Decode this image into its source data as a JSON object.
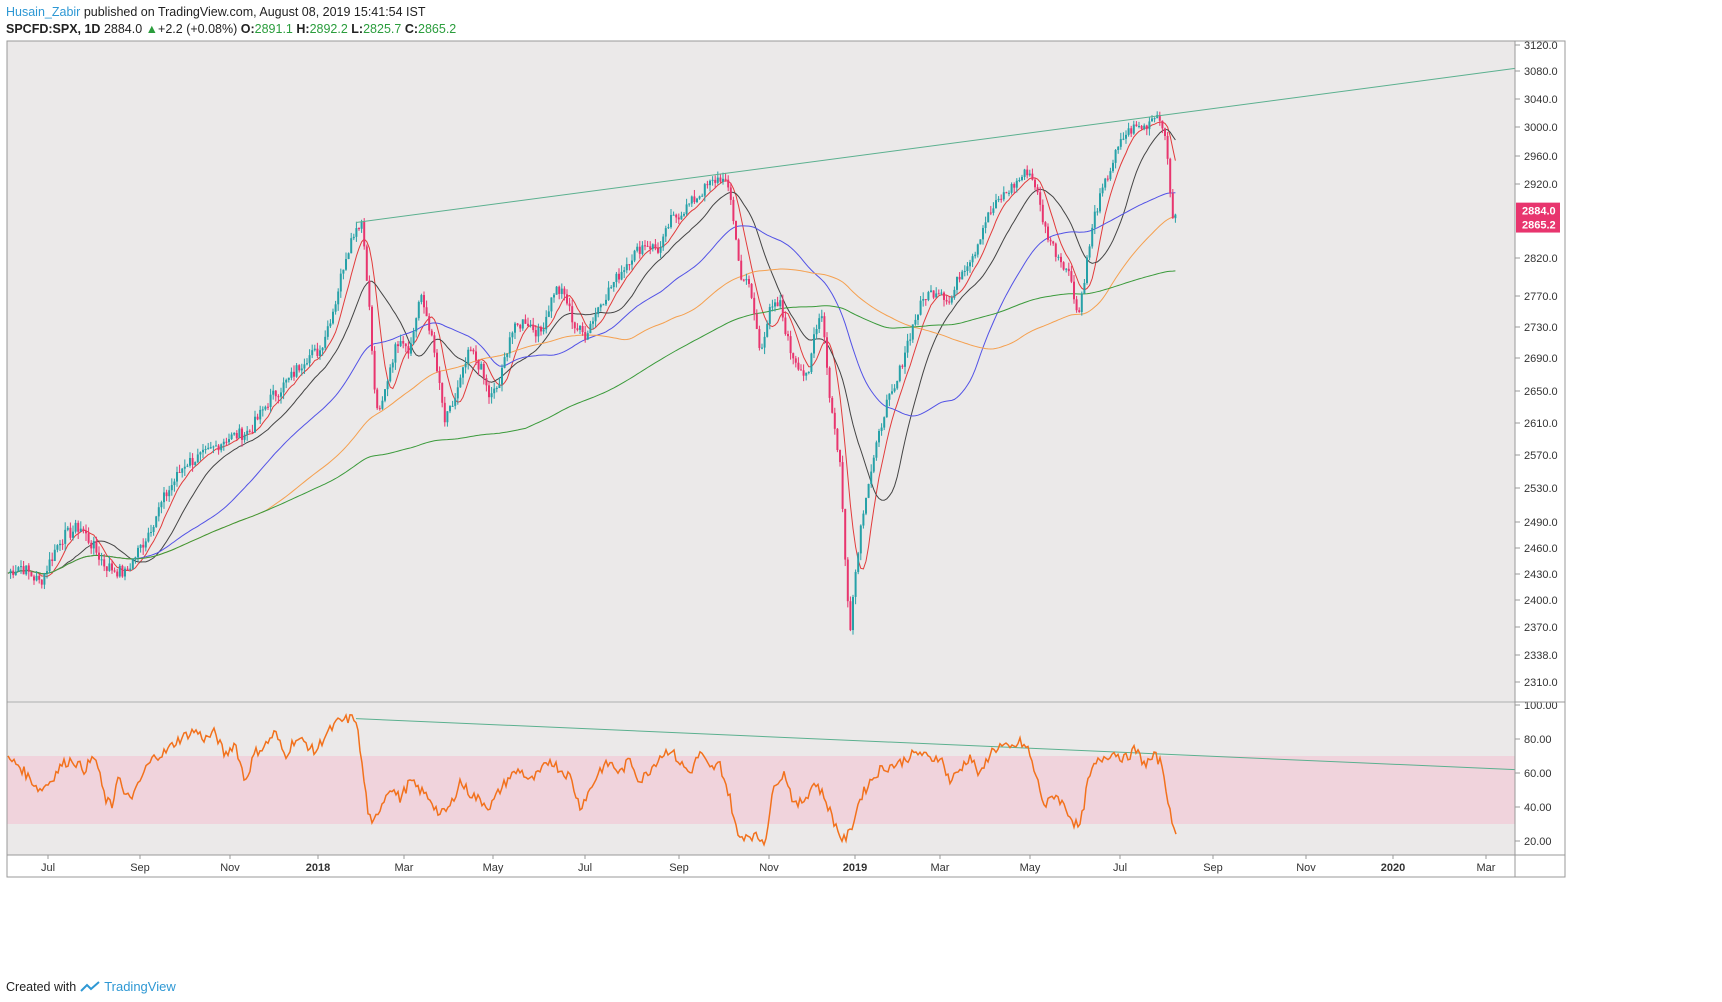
{
  "header": {
    "username": "Husain_Zabir",
    "published_text": " published on TradingView.com, August 08, 2019 15:41:54 IST",
    "symbol": "SPCFD:SPX, 1D",
    "last": "2884.0",
    "change": "+2.2 (+0.08%)",
    "open_label": "O:",
    "open": "2891.1",
    "high_label": "H:",
    "high": "2892.2",
    "low_label": "L:",
    "low": "2825.7",
    "close_label": "C:",
    "close": "2865.2"
  },
  "footer": {
    "created_with": "Created with",
    "brand": "TradingView"
  },
  "colors": {
    "bull": "#26a1a8",
    "bear": "#e8356e",
    "ma_fast": "#e23b3b",
    "ma_black": "#444444",
    "ma_blue": "#5252e6",
    "ma_orange": "#f5a04f",
    "ma_green": "#3a9a3a",
    "trend": "#5bb08f",
    "rsi": "#f2711c",
    "rsi_band": "#f0d3dc",
    "panel_bg": "#ebe8e8"
  },
  "chart_data": {
    "type": "line",
    "title": "SPCFD:SPX, 1D",
    "price_axis": {
      "ticks": [
        "3120.0",
        "3080.0",
        "3040.0",
        "3000.0",
        "2960.0",
        "2920.0",
        "2820.0",
        "2770.0",
        "2730.0",
        "2690.0",
        "2650.0",
        "2610.0",
        "2570.0",
        "2530.0",
        "2490.0",
        "2460.0",
        "2430.0",
        "2400.0",
        "2370.0",
        "2338.0",
        "2310.0"
      ],
      "ylim": [
        2290,
        3125
      ]
    },
    "price_labels": {
      "last": "2884.0",
      "close": "2865.2"
    },
    "rsi_axis": {
      "ticks": [
        "100.00",
        "80.00",
        "60.00",
        "40.00",
        "20.00"
      ],
      "ylim": [
        10,
        100
      ],
      "band": [
        30,
        70
      ]
    },
    "time_axis": {
      "ticks": [
        {
          "label": "Jul",
          "bold": false
        },
        {
          "label": "Sep",
          "bold": false
        },
        {
          "label": "Nov",
          "bold": false
        },
        {
          "label": "2018",
          "bold": true
        },
        {
          "label": "Mar",
          "bold": false
        },
        {
          "label": "May",
          "bold": false
        },
        {
          "label": "Jul",
          "bold": false
        },
        {
          "label": "Sep",
          "bold": false
        },
        {
          "label": "Nov",
          "bold": false
        },
        {
          "label": "2019",
          "bold": true
        },
        {
          "label": "Mar",
          "bold": false
        },
        {
          "label": "May",
          "bold": false
        },
        {
          "label": "Jul",
          "bold": false
        },
        {
          "label": "Sep",
          "bold": false
        },
        {
          "label": "Nov",
          "bold": false
        },
        {
          "label": "2020",
          "bold": true
        },
        {
          "label": "Mar",
          "bold": false
        }
      ]
    },
    "price_anchors": [
      [
        0,
        2425
      ],
      [
        20,
        2440
      ],
      [
        40,
        2420
      ],
      [
        60,
        2470
      ],
      [
        80,
        2485
      ],
      [
        105,
        2440
      ],
      [
        125,
        2430
      ],
      [
        145,
        2470
      ],
      [
        165,
        2520
      ],
      [
        185,
        2560
      ],
      [
        205,
        2570
      ],
      [
        225,
        2590
      ],
      [
        250,
        2600
      ],
      [
        270,
        2640
      ],
      [
        290,
        2665
      ],
      [
        305,
        2690
      ],
      [
        320,
        2700
      ],
      [
        335,
        2760
      ],
      [
        345,
        2820
      ],
      [
        355,
        2860
      ],
      [
        362,
        2870
      ],
      [
        368,
        2780
      ],
      [
        375,
        2640
      ],
      [
        380,
        2620
      ],
      [
        390,
        2680
      ],
      [
        400,
        2720
      ],
      [
        410,
        2700
      ],
      [
        420,
        2770
      ],
      [
        428,
        2740
      ],
      [
        435,
        2690
      ],
      [
        445,
        2610
      ],
      [
        455,
        2640
      ],
      [
        470,
        2700
      ],
      [
        480,
        2680
      ],
      [
        490,
        2640
      ],
      [
        500,
        2660
      ],
      [
        510,
        2720
      ],
      [
        525,
        2740
      ],
      [
        540,
        2720
      ],
      [
        555,
        2780
      ],
      [
        565,
        2770
      ],
      [
        575,
        2730
      ],
      [
        585,
        2720
      ],
      [
        600,
        2760
      ],
      [
        615,
        2790
      ],
      [
        630,
        2820
      ],
      [
        645,
        2840
      ],
      [
        660,
        2830
      ],
      [
        670,
        2870
      ],
      [
        680,
        2880
      ],
      [
        695,
        2900
      ],
      [
        710,
        2920
      ],
      [
        720,
        2930
      ],
      [
        730,
        2910
      ],
      [
        740,
        2800
      ],
      [
        750,
        2780
      ],
      [
        760,
        2700
      ],
      [
        770,
        2750
      ],
      [
        780,
        2760
      ],
      [
        790,
        2700
      ],
      [
        800,
        2680
      ],
      [
        808,
        2660
      ],
      [
        815,
        2730
      ],
      [
        822,
        2750
      ],
      [
        830,
        2640
      ],
      [
        840,
        2560
      ],
      [
        845,
        2450
      ],
      [
        850,
        2370
      ],
      [
        858,
        2460
      ],
      [
        865,
        2520
      ],
      [
        875,
        2570
      ],
      [
        885,
        2630
      ],
      [
        895,
        2650
      ],
      [
        905,
        2700
      ],
      [
        915,
        2740
      ],
      [
        925,
        2770
      ],
      [
        940,
        2780
      ],
      [
        950,
        2760
      ],
      [
        960,
        2800
      ],
      [
        975,
        2830
      ],
      [
        985,
        2870
      ],
      [
        1000,
        2900
      ],
      [
        1015,
        2920
      ],
      [
        1028,
        2940
      ],
      [
        1035,
        2920
      ],
      [
        1045,
        2860
      ],
      [
        1055,
        2830
      ],
      [
        1065,
        2810
      ],
      [
        1072,
        2790
      ],
      [
        1078,
        2740
      ],
      [
        1085,
        2800
      ],
      [
        1095,
        2880
      ],
      [
        1105,
        2920
      ],
      [
        1115,
        2960
      ],
      [
        1125,
        2990
      ],
      [
        1135,
        3000
      ],
      [
        1145,
        3000
      ],
      [
        1155,
        3020
      ],
      [
        1162,
        3010
      ],
      [
        1168,
        2950
      ],
      [
        1172,
        2880
      ],
      [
        1176,
        2870
      ]
    ],
    "rsi_anchors": [
      [
        8,
        68
      ],
      [
        18,
        65
      ],
      [
        28,
        58
      ],
      [
        40,
        50
      ],
      [
        50,
        55
      ],
      [
        62,
        65
      ],
      [
        72,
        68
      ],
      [
        84,
        62
      ],
      [
        95,
        70
      ],
      [
        105,
        45
      ],
      [
        112,
        40
      ],
      [
        118,
        60
      ],
      [
        125,
        45
      ],
      [
        135,
        48
      ],
      [
        145,
        62
      ],
      [
        155,
        70
      ],
      [
        165,
        72
      ],
      [
        175,
        78
      ],
      [
        185,
        82
      ],
      [
        195,
        85
      ],
      [
        205,
        80
      ],
      [
        215,
        84
      ],
      [
        225,
        70
      ],
      [
        235,
        78
      ],
      [
        245,
        55
      ],
      [
        255,
        72
      ],
      [
        265,
        76
      ],
      [
        275,
        84
      ],
      [
        285,
        70
      ],
      [
        295,
        80
      ],
      [
        305,
        78
      ],
      [
        315,
        72
      ],
      [
        325,
        82
      ],
      [
        338,
        90
      ],
      [
        350,
        92
      ],
      [
        356,
        92
      ],
      [
        363,
        60
      ],
      [
        368,
        38
      ],
      [
        372,
        28
      ],
      [
        380,
        40
      ],
      [
        390,
        52
      ],
      [
        400,
        45
      ],
      [
        410,
        55
      ],
      [
        420,
        50
      ],
      [
        430,
        45
      ],
      [
        440,
        35
      ],
      [
        450,
        40
      ],
      [
        460,
        55
      ],
      [
        470,
        48
      ],
      [
        480,
        44
      ],
      [
        490,
        40
      ],
      [
        500,
        50
      ],
      [
        510,
        58
      ],
      [
        520,
        62
      ],
      [
        530,
        55
      ],
      [
        540,
        60
      ],
      [
        550,
        68
      ],
      [
        560,
        62
      ],
      [
        570,
        58
      ],
      [
        580,
        40
      ],
      [
        590,
        50
      ],
      [
        600,
        62
      ],
      [
        610,
        66
      ],
      [
        620,
        60
      ],
      [
        630,
        68
      ],
      [
        640,
        55
      ],
      [
        650,
        62
      ],
      [
        660,
        70
      ],
      [
        670,
        74
      ],
      [
        680,
        66
      ],
      [
        690,
        60
      ],
      [
        700,
        72
      ],
      [
        710,
        62
      ],
      [
        720,
        65
      ],
      [
        730,
        45
      ],
      [
        738,
        22
      ],
      [
        748,
        24
      ],
      [
        758,
        22
      ],
      [
        765,
        20
      ],
      [
        775,
        55
      ],
      [
        785,
        60
      ],
      [
        795,
        40
      ],
      [
        805,
        45
      ],
      [
        815,
        55
      ],
      [
        825,
        45
      ],
      [
        835,
        30
      ],
      [
        843,
        20
      ],
      [
        850,
        25
      ],
      [
        860,
        45
      ],
      [
        870,
        55
      ],
      [
        880,
        62
      ],
      [
        890,
        64
      ],
      [
        900,
        66
      ],
      [
        910,
        70
      ],
      [
        920,
        72
      ],
      [
        930,
        68
      ],
      [
        940,
        70
      ],
      [
        950,
        55
      ],
      [
        960,
        62
      ],
      [
        970,
        70
      ],
      [
        980,
        58
      ],
      [
        990,
        72
      ],
      [
        1000,
        76
      ],
      [
        1010,
        74
      ],
      [
        1020,
        78
      ],
      [
        1028,
        74
      ],
      [
        1035,
        60
      ],
      [
        1045,
        40
      ],
      [
        1055,
        48
      ],
      [
        1065,
        40
      ],
      [
        1075,
        30
      ],
      [
        1080,
        28
      ],
      [
        1088,
        55
      ],
      [
        1095,
        65
      ],
      [
        1105,
        70
      ],
      [
        1115,
        72
      ],
      [
        1125,
        68
      ],
      [
        1135,
        74
      ],
      [
        1145,
        65
      ],
      [
        1155,
        70
      ],
      [
        1162,
        65
      ],
      [
        1168,
        45
      ],
      [
        1172,
        28
      ],
      [
        1176,
        27
      ]
    ]
  }
}
